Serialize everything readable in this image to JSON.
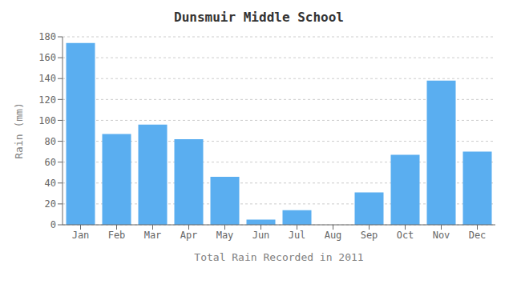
{
  "chart_data": {
    "type": "bar",
    "title": "Dunsmuir Middle School",
    "xlabel": "Total Rain Recorded in 2011",
    "ylabel": "Rain (mm)",
    "categories": [
      "Jan",
      "Feb",
      "Mar",
      "Apr",
      "May",
      "Jun",
      "Jul",
      "Aug",
      "Sep",
      "Oct",
      "Nov",
      "Dec"
    ],
    "values": [
      174,
      87,
      96,
      82,
      46,
      5,
      14,
      0,
      31,
      67,
      138,
      70
    ],
    "color": "#5aaef0",
    "ylim": [
      0,
      180
    ],
    "yticks": [
      0,
      20,
      40,
      60,
      80,
      100,
      120,
      140,
      160,
      180
    ],
    "grid": true
  }
}
